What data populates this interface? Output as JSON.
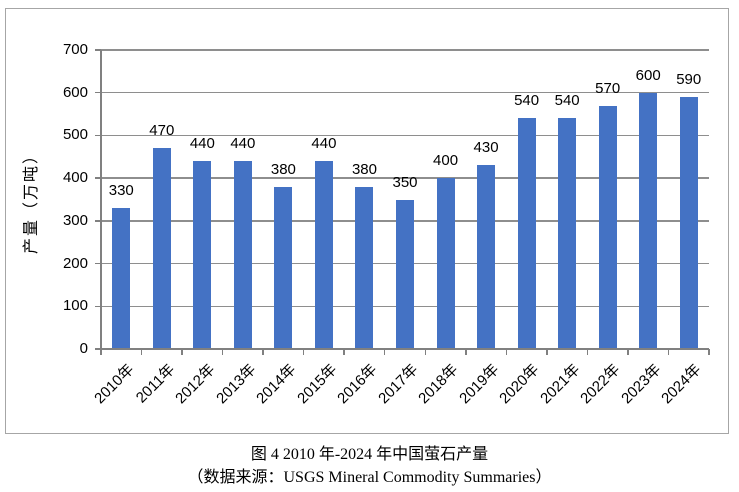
{
  "figure": {
    "caption_line1": "图 4  2010 年-2024 年中国萤石产量",
    "caption_line2": "（数据来源：USGS Mineral Commodity Summaries）"
  },
  "chart_data": {
    "type": "bar",
    "title": "图 4  2010 年-2024 年中国萤石产量",
    "source": "（数据来源：USGS Mineral Commodity Summaries）",
    "categories": [
      "2010年",
      "2011年",
      "2012年",
      "2013年",
      "2014年",
      "2015年",
      "2016年",
      "2017年",
      "2018年",
      "2019年",
      "2020年",
      "2021年",
      "2022年",
      "2023年",
      "2024年"
    ],
    "values": [
      330,
      470,
      440,
      440,
      380,
      440,
      380,
      350,
      400,
      430,
      540,
      540,
      570,
      600,
      590
    ],
    "xlabel": "",
    "ylabel": "产量（万吨）",
    "ylim": [
      0,
      700
    ],
    "ytick_step": 100,
    "grid": true,
    "data_labels": true,
    "legend": "none",
    "bar_color": "#4472c4",
    "gridline_color": "#8e8e8e",
    "axis_color": "#808080",
    "frame_border_color": "#a6a6a6"
  }
}
